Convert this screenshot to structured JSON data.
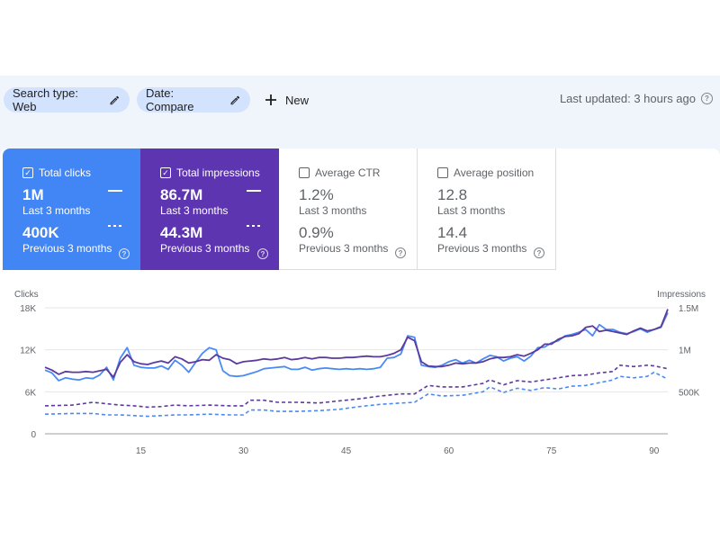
{
  "filters": {
    "search_type": "Search type: Web",
    "date": "Date: Compare",
    "new_label": "New"
  },
  "last_updated": "Last updated: 3 hours ago",
  "metrics": {
    "clicks": {
      "label": "Total clicks",
      "value": "1M",
      "period": "Last 3 months",
      "prev_value": "400K",
      "prev_period": "Previous 3 months",
      "color": "#4285f4",
      "selected": true
    },
    "impressions": {
      "label": "Total impressions",
      "value": "86.7M",
      "period": "Last 3 months",
      "prev_value": "44.3M",
      "prev_period": "Previous 3 months",
      "color": "#5e35b1",
      "selected": true
    },
    "ctr": {
      "label": "Average CTR",
      "value": "1.2%",
      "period": "Last 3 months",
      "prev_value": "0.9%",
      "prev_period": "Previous 3 months",
      "selected": false
    },
    "position": {
      "label": "Average position",
      "value": "12.8",
      "period": "Last 3 months",
      "prev_value": "14.4",
      "prev_period": "Previous 3 months",
      "selected": false
    }
  },
  "icons": {
    "edit": "pencil-icon",
    "add": "plus-icon",
    "help": "help-circle-icon",
    "checkbox": "checkbox-icon"
  },
  "chart_data": {
    "type": "line",
    "left_axis_label": "Clicks",
    "right_axis_label": "Impressions",
    "left_ticks": [
      "18K",
      "12K",
      "6K",
      "0"
    ],
    "right_ticks": [
      "1.5M",
      "1M",
      "500K",
      ""
    ],
    "x_ticks": [
      "15",
      "30",
      "45",
      "60",
      "75",
      "90"
    ],
    "x_tick_values": [
      15,
      30,
      45,
      60,
      75,
      90
    ],
    "xlim": [
      1,
      92
    ],
    "ylim_left": [
      0,
      18000
    ],
    "ylim_right": [
      0,
      1500000
    ],
    "series": [
      {
        "axis": "left",
        "style": "solid",
        "color": "#4a8af4",
        "points": [
          [
            1,
            9100
          ],
          [
            2,
            8700
          ],
          [
            3,
            7600
          ],
          [
            4,
            8000
          ],
          [
            5,
            7800
          ],
          [
            6,
            7700
          ],
          [
            7,
            8000
          ],
          [
            8,
            7900
          ],
          [
            9,
            8400
          ],
          [
            10,
            9500
          ],
          [
            11,
            7700
          ],
          [
            12,
            10800
          ],
          [
            13,
            12300
          ],
          [
            14,
            9800
          ],
          [
            15,
            9500
          ],
          [
            16,
            9400
          ],
          [
            17,
            9400
          ],
          [
            18,
            9700
          ],
          [
            19,
            9200
          ],
          [
            20,
            10500
          ],
          [
            21,
            9800
          ],
          [
            22,
            8800
          ],
          [
            23,
            10200
          ],
          [
            24,
            11500
          ],
          [
            25,
            12300
          ],
          [
            26,
            12000
          ],
          [
            27,
            9000
          ],
          [
            28,
            8300
          ],
          [
            29,
            8200
          ],
          [
            30,
            8300
          ],
          [
            31,
            8600
          ],
          [
            32,
            8900
          ],
          [
            33,
            9300
          ],
          [
            34,
            9400
          ],
          [
            35,
            9500
          ],
          [
            36,
            9600
          ],
          [
            37,
            9200
          ],
          [
            38,
            9200
          ],
          [
            39,
            9500
          ],
          [
            40,
            9100
          ],
          [
            41,
            9300
          ],
          [
            42,
            9400
          ],
          [
            43,
            9300
          ],
          [
            44,
            9200
          ],
          [
            45,
            9300
          ],
          [
            46,
            9200
          ],
          [
            47,
            9300
          ],
          [
            48,
            9200
          ],
          [
            49,
            9300
          ],
          [
            50,
            9500
          ],
          [
            51,
            10800
          ],
          [
            52,
            10900
          ],
          [
            53,
            11400
          ],
          [
            54,
            14000
          ],
          [
            55,
            13800
          ],
          [
            56,
            9800
          ],
          [
            57,
            9600
          ],
          [
            58,
            9500
          ],
          [
            59,
            9800
          ],
          [
            60,
            10300
          ],
          [
            61,
            10600
          ],
          [
            62,
            10100
          ],
          [
            63,
            10500
          ],
          [
            64,
            10100
          ],
          [
            65,
            10700
          ],
          [
            66,
            11200
          ],
          [
            67,
            11000
          ],
          [
            68,
            10400
          ],
          [
            69,
            10800
          ],
          [
            70,
            11000
          ],
          [
            71,
            10400
          ],
          [
            72,
            11100
          ],
          [
            73,
            12300
          ],
          [
            74,
            12400
          ],
          [
            75,
            13000
          ],
          [
            76,
            13300
          ],
          [
            77,
            14000
          ],
          [
            78,
            14200
          ],
          [
            79,
            14500
          ],
          [
            80,
            14900
          ],
          [
            81,
            14000
          ],
          [
            82,
            15600
          ],
          [
            83,
            14900
          ],
          [
            84,
            14900
          ],
          [
            85,
            14500
          ],
          [
            86,
            14300
          ],
          [
            87,
            14600
          ],
          [
            88,
            15000
          ],
          [
            89,
            14500
          ],
          [
            90,
            14900
          ],
          [
            91,
            15200
          ],
          [
            92,
            17300
          ]
        ]
      },
      {
        "axis": "left",
        "style": "solid",
        "color": "#5b3a9d",
        "points": [
          [
            1,
            9500
          ],
          [
            2,
            9100
          ],
          [
            3,
            8500
          ],
          [
            4,
            8900
          ],
          [
            5,
            8800
          ],
          [
            6,
            8800
          ],
          [
            7,
            8900
          ],
          [
            8,
            8800
          ],
          [
            9,
            9000
          ],
          [
            10,
            9200
          ],
          [
            11,
            8100
          ],
          [
            12,
            10200
          ],
          [
            13,
            11300
          ],
          [
            14,
            10300
          ],
          [
            15,
            10000
          ],
          [
            16,
            9900
          ],
          [
            17,
            10200
          ],
          [
            18,
            10400
          ],
          [
            19,
            10100
          ],
          [
            20,
            11000
          ],
          [
            21,
            10700
          ],
          [
            22,
            10100
          ],
          [
            23,
            10300
          ],
          [
            24,
            10600
          ],
          [
            25,
            10500
          ],
          [
            26,
            11300
          ],
          [
            27,
            10800
          ],
          [
            28,
            10600
          ],
          [
            29,
            10000
          ],
          [
            30,
            10300
          ],
          [
            31,
            10400
          ],
          [
            32,
            10500
          ],
          [
            33,
            10700
          ],
          [
            34,
            10600
          ],
          [
            35,
            10700
          ],
          [
            36,
            10900
          ],
          [
            37,
            10600
          ],
          [
            38,
            10700
          ],
          [
            39,
            10900
          ],
          [
            40,
            10700
          ],
          [
            41,
            10900
          ],
          [
            42,
            10900
          ],
          [
            43,
            10800
          ],
          [
            44,
            10800
          ],
          [
            45,
            10900
          ],
          [
            46,
            10900
          ],
          [
            47,
            11000
          ],
          [
            48,
            11100
          ],
          [
            49,
            11000
          ],
          [
            50,
            11000
          ],
          [
            51,
            11200
          ],
          [
            52,
            11500
          ],
          [
            53,
            12000
          ],
          [
            54,
            13800
          ],
          [
            55,
            13300
          ],
          [
            56,
            10300
          ],
          [
            57,
            9700
          ],
          [
            58,
            9600
          ],
          [
            59,
            9600
          ],
          [
            60,
            9800
          ],
          [
            61,
            10100
          ],
          [
            62,
            10000
          ],
          [
            63,
            10100
          ],
          [
            64,
            10100
          ],
          [
            65,
            10300
          ],
          [
            66,
            10700
          ],
          [
            67,
            10900
          ],
          [
            68,
            10900
          ],
          [
            69,
            11000
          ],
          [
            70,
            11300
          ],
          [
            71,
            11100
          ],
          [
            72,
            11500
          ],
          [
            73,
            12000
          ],
          [
            74,
            12800
          ],
          [
            75,
            12800
          ],
          [
            76,
            13500
          ],
          [
            77,
            13900
          ],
          [
            78,
            14000
          ],
          [
            79,
            14300
          ],
          [
            80,
            15200
          ],
          [
            81,
            15400
          ],
          [
            82,
            14600
          ],
          [
            83,
            14800
          ],
          [
            84,
            14600
          ],
          [
            85,
            14400
          ],
          [
            86,
            14200
          ],
          [
            87,
            14700
          ],
          [
            88,
            15100
          ],
          [
            89,
            14700
          ],
          [
            90,
            14900
          ],
          [
            91,
            15300
          ],
          [
            92,
            17800
          ]
        ]
      },
      {
        "axis": "left",
        "style": "dashed",
        "color": "#5b3a9d",
        "points": [
          [
            1,
            4000
          ],
          [
            5,
            4100
          ],
          [
            8,
            4500
          ],
          [
            10,
            4300
          ],
          [
            12,
            4100
          ],
          [
            14,
            4000
          ],
          [
            16,
            3800
          ],
          [
            18,
            3900
          ],
          [
            20,
            4100
          ],
          [
            22,
            4000
          ],
          [
            25,
            4100
          ],
          [
            28,
            4000
          ],
          [
            30,
            4000
          ],
          [
            31,
            4800
          ],
          [
            33,
            4800
          ],
          [
            35,
            4500
          ],
          [
            38,
            4500
          ],
          [
            41,
            4400
          ],
          [
            44,
            4700
          ],
          [
            47,
            5000
          ],
          [
            50,
            5400
          ],
          [
            53,
            5700
          ],
          [
            55,
            5700
          ],
          [
            57,
            6900
          ],
          [
            59,
            6700
          ],
          [
            62,
            6700
          ],
          [
            65,
            7200
          ],
          [
            66,
            7700
          ],
          [
            68,
            7000
          ],
          [
            70,
            7600
          ],
          [
            72,
            7400
          ],
          [
            74,
            7700
          ],
          [
            76,
            8000
          ],
          [
            78,
            8300
          ],
          [
            80,
            8400
          ],
          [
            82,
            8700
          ],
          [
            84,
            8900
          ],
          [
            85,
            9800
          ],
          [
            87,
            9600
          ],
          [
            89,
            9800
          ],
          [
            90,
            9700
          ],
          [
            92,
            9300
          ]
        ]
      },
      {
        "axis": "left",
        "style": "dashed",
        "color": "#4a8af4",
        "points": [
          [
            1,
            2800
          ],
          [
            5,
            2900
          ],
          [
            8,
            2900
          ],
          [
            10,
            2700
          ],
          [
            12,
            2700
          ],
          [
            14,
            2600
          ],
          [
            16,
            2500
          ],
          [
            18,
            2600
          ],
          [
            20,
            2700
          ],
          [
            22,
            2700
          ],
          [
            25,
            2800
          ],
          [
            28,
            2700
          ],
          [
            30,
            2700
          ],
          [
            31,
            3400
          ],
          [
            33,
            3400
          ],
          [
            35,
            3200
          ],
          [
            38,
            3200
          ],
          [
            41,
            3300
          ],
          [
            44,
            3500
          ],
          [
            47,
            3900
          ],
          [
            50,
            4200
          ],
          [
            53,
            4400
          ],
          [
            55,
            4500
          ],
          [
            57,
            5700
          ],
          [
            59,
            5400
          ],
          [
            62,
            5500
          ],
          [
            65,
            6000
          ],
          [
            66,
            6700
          ],
          [
            68,
            5900
          ],
          [
            70,
            6500
          ],
          [
            72,
            6200
          ],
          [
            74,
            6600
          ],
          [
            76,
            6400
          ],
          [
            78,
            6800
          ],
          [
            80,
            6900
          ],
          [
            82,
            7300
          ],
          [
            84,
            7700
          ],
          [
            85,
            8200
          ],
          [
            87,
            8000
          ],
          [
            89,
            8200
          ],
          [
            90,
            8800
          ],
          [
            92,
            7800
          ]
        ]
      }
    ]
  }
}
